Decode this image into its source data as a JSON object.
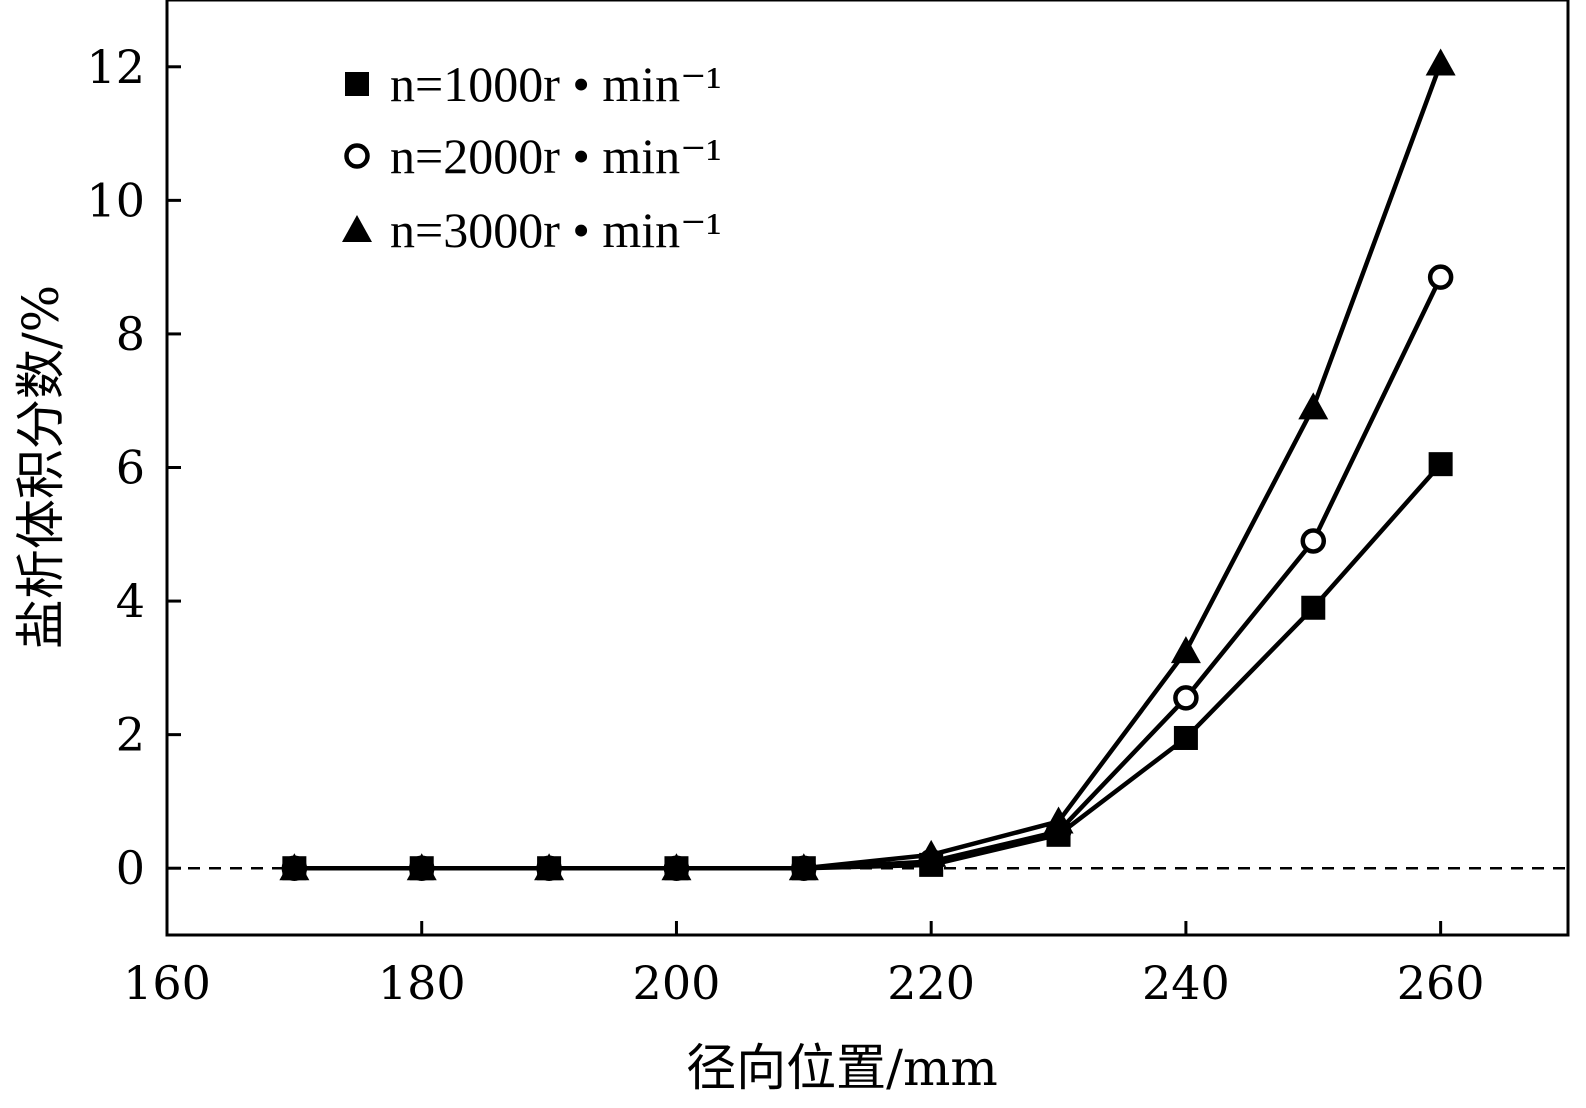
{
  "chart_data": {
    "type": "line",
    "title": "",
    "xlabel": "径向位置/mm",
    "ylabel": "盐析体积分数/%",
    "xlim": [
      160,
      270
    ],
    "ylim": [
      -1,
      13
    ],
    "x_ticks": [
      160,
      180,
      200,
      220,
      240,
      260
    ],
    "y_ticks": [
      0,
      2,
      4,
      6,
      8,
      10,
      12
    ],
    "grid": false,
    "legend_position": "top-left",
    "reference_line": {
      "y": 0,
      "style": "dashed"
    },
    "x": [
      170,
      180,
      190,
      200,
      210,
      220,
      230,
      240,
      250,
      260
    ],
    "series": [
      {
        "name": "n=1000r • min⁻¹",
        "marker": "square",
        "color": "#000000",
        "values": [
          0,
          0,
          0,
          0,
          0,
          0.05,
          0.5,
          1.95,
          3.9,
          6.05
        ]
      },
      {
        "name": "n=2000r • min⁻¹",
        "marker": "circle-open",
        "color": "#000000",
        "values": [
          0,
          0,
          0,
          0,
          0,
          0.1,
          0.55,
          2.55,
          4.9,
          8.85
        ]
      },
      {
        "name": "n=3000r • min⁻¹",
        "marker": "triangle",
        "color": "#000000",
        "values": [
          0,
          0,
          0,
          0,
          0,
          0.2,
          0.7,
          3.25,
          6.9,
          12.05
        ]
      }
    ]
  }
}
